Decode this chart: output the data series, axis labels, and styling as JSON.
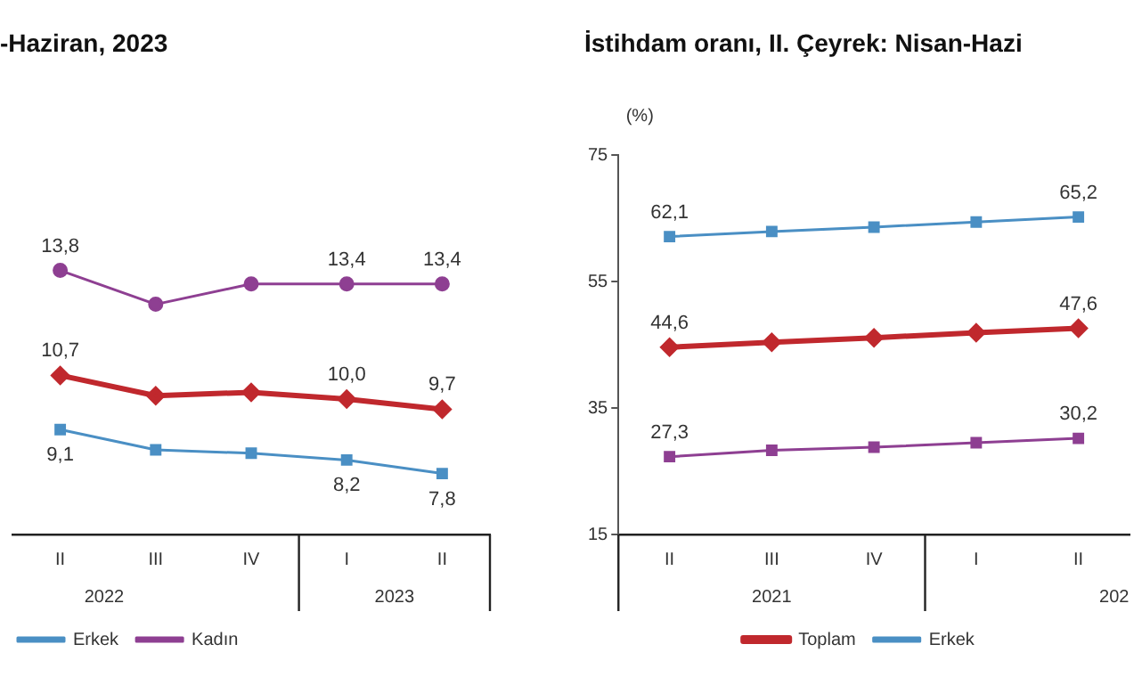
{
  "chart_data": [
    {
      "type": "line",
      "title": "-Haziran, 2023",
      "categories": [
        "II",
        "III",
        "IV",
        "I",
        "II"
      ],
      "tick_labels": "x",
      "grid": false,
      "legend": "bottom",
      "annotations": [
        "2022",
        "2023"
      ],
      "series": [
        {
          "color": "#c0282d",
          "marker": "diamond",
          "values": [
            10.7,
            10.1,
            10.2,
            10.0,
            9.7
          ],
          "value_labels": [
            "10,7",
            null,
            null,
            "10,0",
            "9,7"
          ]
        },
        {
          "name": "Erkek",
          "color": "#4a8fc4",
          "marker": "square",
          "values": [
            9.1,
            8.5,
            8.4,
            8.2,
            7.8
          ],
          "value_labels": [
            "9,1",
            null,
            null,
            "8,2",
            "7,8"
          ]
        },
        {
          "name": "Kadın",
          "color": "#8e3f92",
          "marker": "circle",
          "values": [
            13.8,
            12.8,
            13.4,
            13.4,
            13.4
          ],
          "value_labels": [
            "13,8",
            null,
            null,
            "13,4",
            "13,4"
          ]
        }
      ]
    },
    {
      "type": "line",
      "title": "İstihdam oranı, II. Çeyrek: Nisan-Hazi",
      "ylabel": "(%)",
      "categories": [
        "II",
        "III",
        "IV",
        "I",
        "II"
      ],
      "ylim": [
        15,
        75
      ],
      "yticks": [
        15,
        35,
        55,
        75
      ],
      "grid": false,
      "legend": "bottom",
      "annotations": [
        "2021",
        "202"
      ],
      "series": [
        {
          "name": "Toplam",
          "color": "#c0282d",
          "marker": "diamond",
          "values": [
            44.6,
            45.4,
            46.1,
            46.9,
            47.6
          ],
          "value_labels": [
            "44,6",
            null,
            null,
            null,
            "47,6"
          ]
        },
        {
          "name": "Erkek",
          "color": "#4a8fc4",
          "marker": "square",
          "values": [
            62.1,
            62.9,
            63.6,
            64.4,
            65.2
          ],
          "value_labels": [
            "62,1",
            null,
            null,
            null,
            "65,2"
          ]
        },
        {
          "color": "#8e3f92",
          "marker": "square",
          "values": [
            27.3,
            28.3,
            28.8,
            29.5,
            30.2
          ],
          "value_labels": [
            "27,3",
            null,
            null,
            null,
            "30,2"
          ]
        }
      ]
    }
  ]
}
